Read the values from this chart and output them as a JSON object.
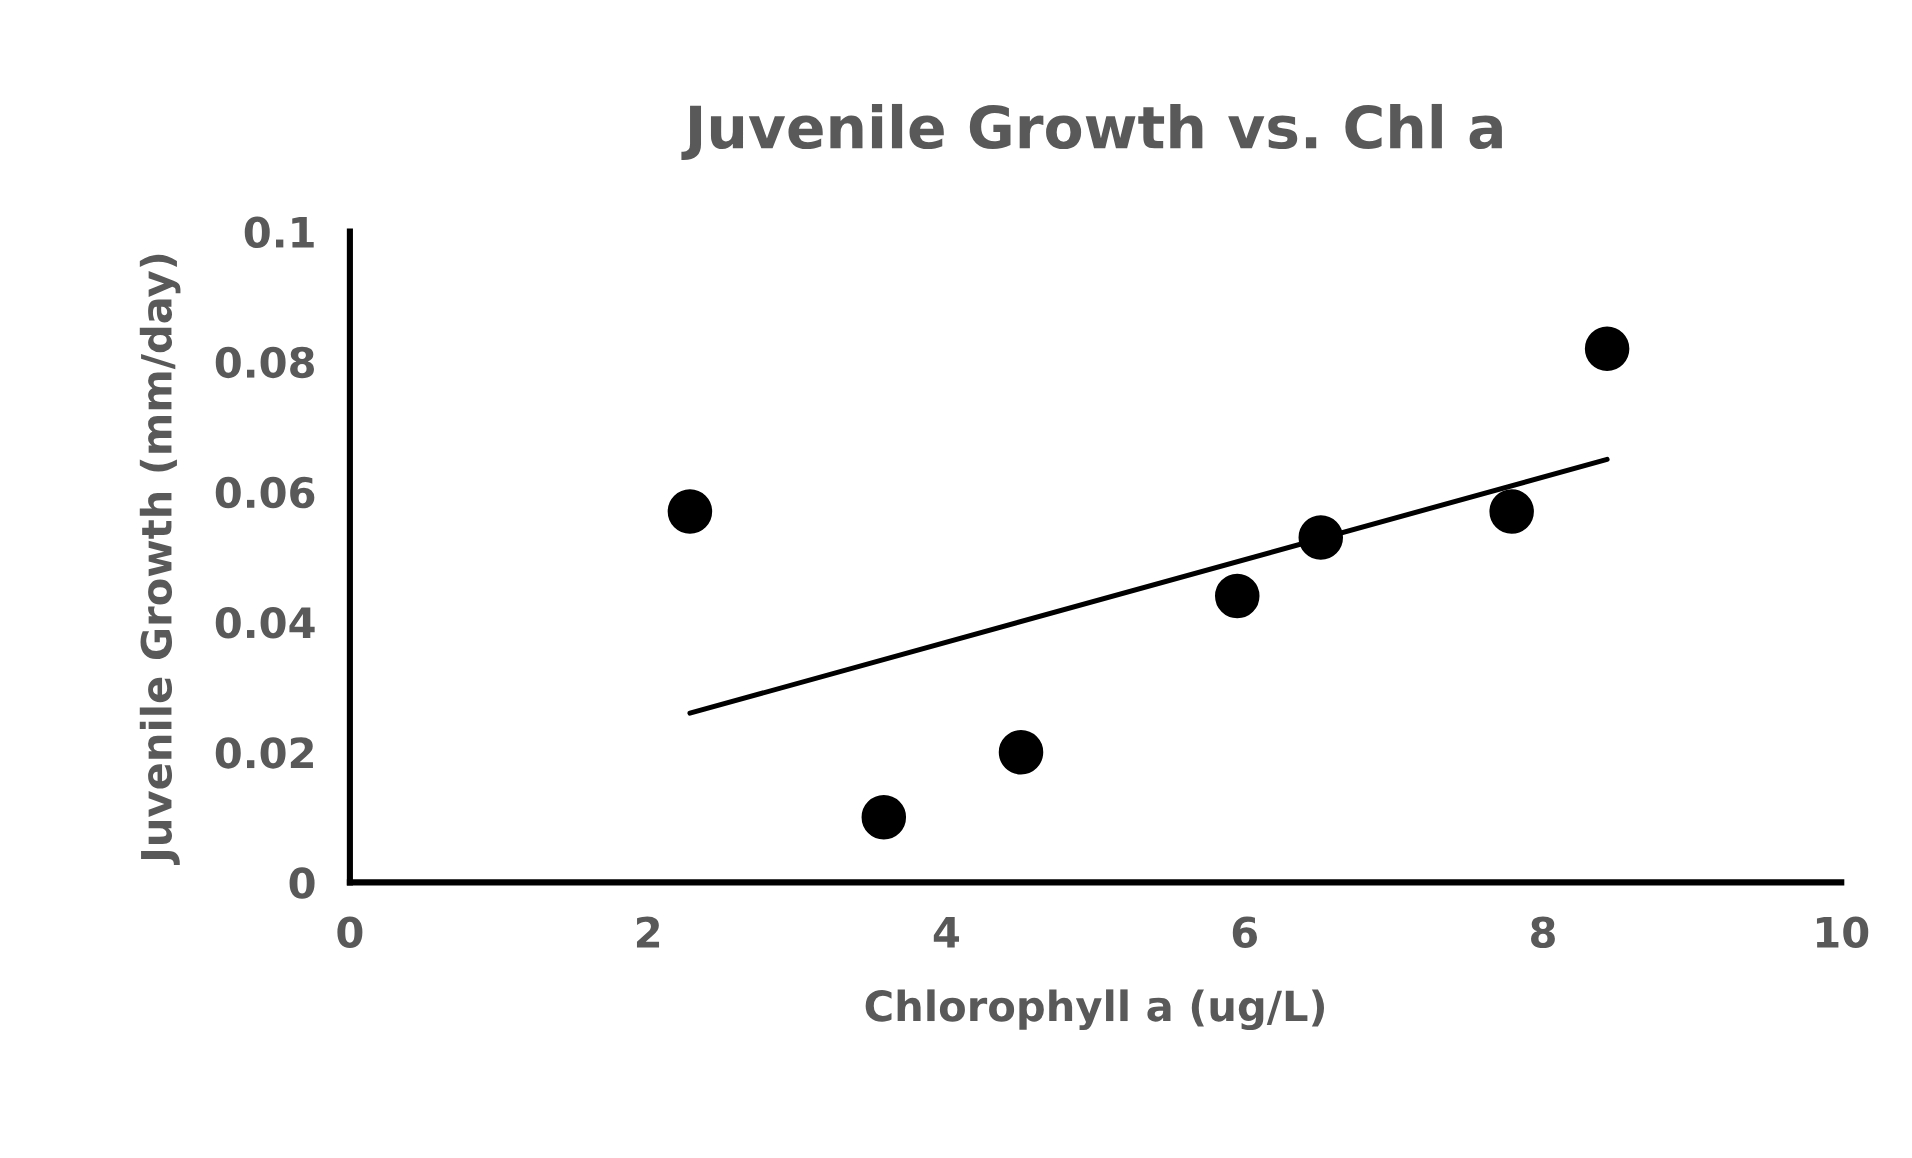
{
  "chart_data": {
    "type": "scatter",
    "title": "Juvenile Growth vs. Chl a",
    "xlabel": "Chlorophyll a (ug/L)",
    "ylabel": "Juvenile Growth (mm/day)",
    "xlim": [
      0,
      10
    ],
    "xticks": [
      0,
      2,
      4,
      6,
      8,
      10
    ],
    "ylim": [
      0,
      0.1
    ],
    "yticks": [
      0,
      0.02,
      0.04,
      0.06,
      0.08,
      0.1
    ],
    "grid": false,
    "series": [
      {
        "marker": "circle",
        "color": "#000000",
        "x": [
          2.28,
          3.58,
          4.5,
          5.95,
          6.51,
          7.79,
          8.43
        ],
        "values": [
          0.057,
          0.01,
          0.02,
          0.044,
          0.053,
          0.057,
          0.082
        ]
      },
      {
        "type": "line",
        "marker": "none",
        "color": "#000000",
        "line_style": "solid",
        "x": [
          2.28,
          8.43
        ],
        "values": [
          0.026,
          0.065
        ]
      }
    ]
  }
}
